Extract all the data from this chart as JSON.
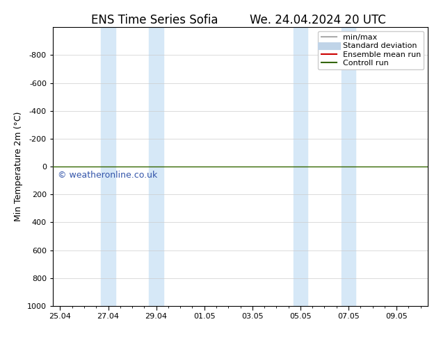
{
  "title_left": "ENS Time Series Sofia",
  "title_right": "We. 24.04.2024 20 UTC",
  "ylabel": "Min Temperature 2m (°C)",
  "watermark": "© weatheronline.co.uk",
  "ylim": [
    -1000,
    1000
  ],
  "yticks": [
    -800,
    -600,
    -400,
    -200,
    0,
    200,
    400,
    600,
    800,
    1000
  ],
  "xtick_labels": [
    "25.04",
    "27.04",
    "29.04",
    "01.05",
    "03.05",
    "05.05",
    "07.05",
    "09.05"
  ],
  "xtick_pos": [
    0,
    2,
    4,
    6,
    8,
    10,
    12,
    14
  ],
  "xmin": -0.3,
  "xmax": 15.3,
  "shaded_bands": [
    [
      1.7,
      2.3
    ],
    [
      3.7,
      4.3
    ],
    [
      9.7,
      10.3
    ],
    [
      11.7,
      12.3
    ]
  ],
  "band_color": "#d6e8f7",
  "horizontal_line_y": 0,
  "horizontal_line_color": "#336600",
  "legend_items": [
    {
      "label": "min/max",
      "color": "#aaaaaa",
      "lw": 1.5
    },
    {
      "label": "Standard deviation",
      "color": "#c0d4e8",
      "lw": 8
    },
    {
      "label": "Ensemble mean run",
      "color": "#cc0000",
      "lw": 1.5
    },
    {
      "label": "Controll run",
      "color": "#336600",
      "lw": 1.5
    }
  ],
  "background_color": "#ffffff",
  "grid_color": "#cccccc",
  "title_fontsize": 12,
  "label_fontsize": 9,
  "tick_fontsize": 8,
  "legend_fontsize": 8,
  "watermark_color": "#3355aa",
  "watermark_fontsize": 9
}
